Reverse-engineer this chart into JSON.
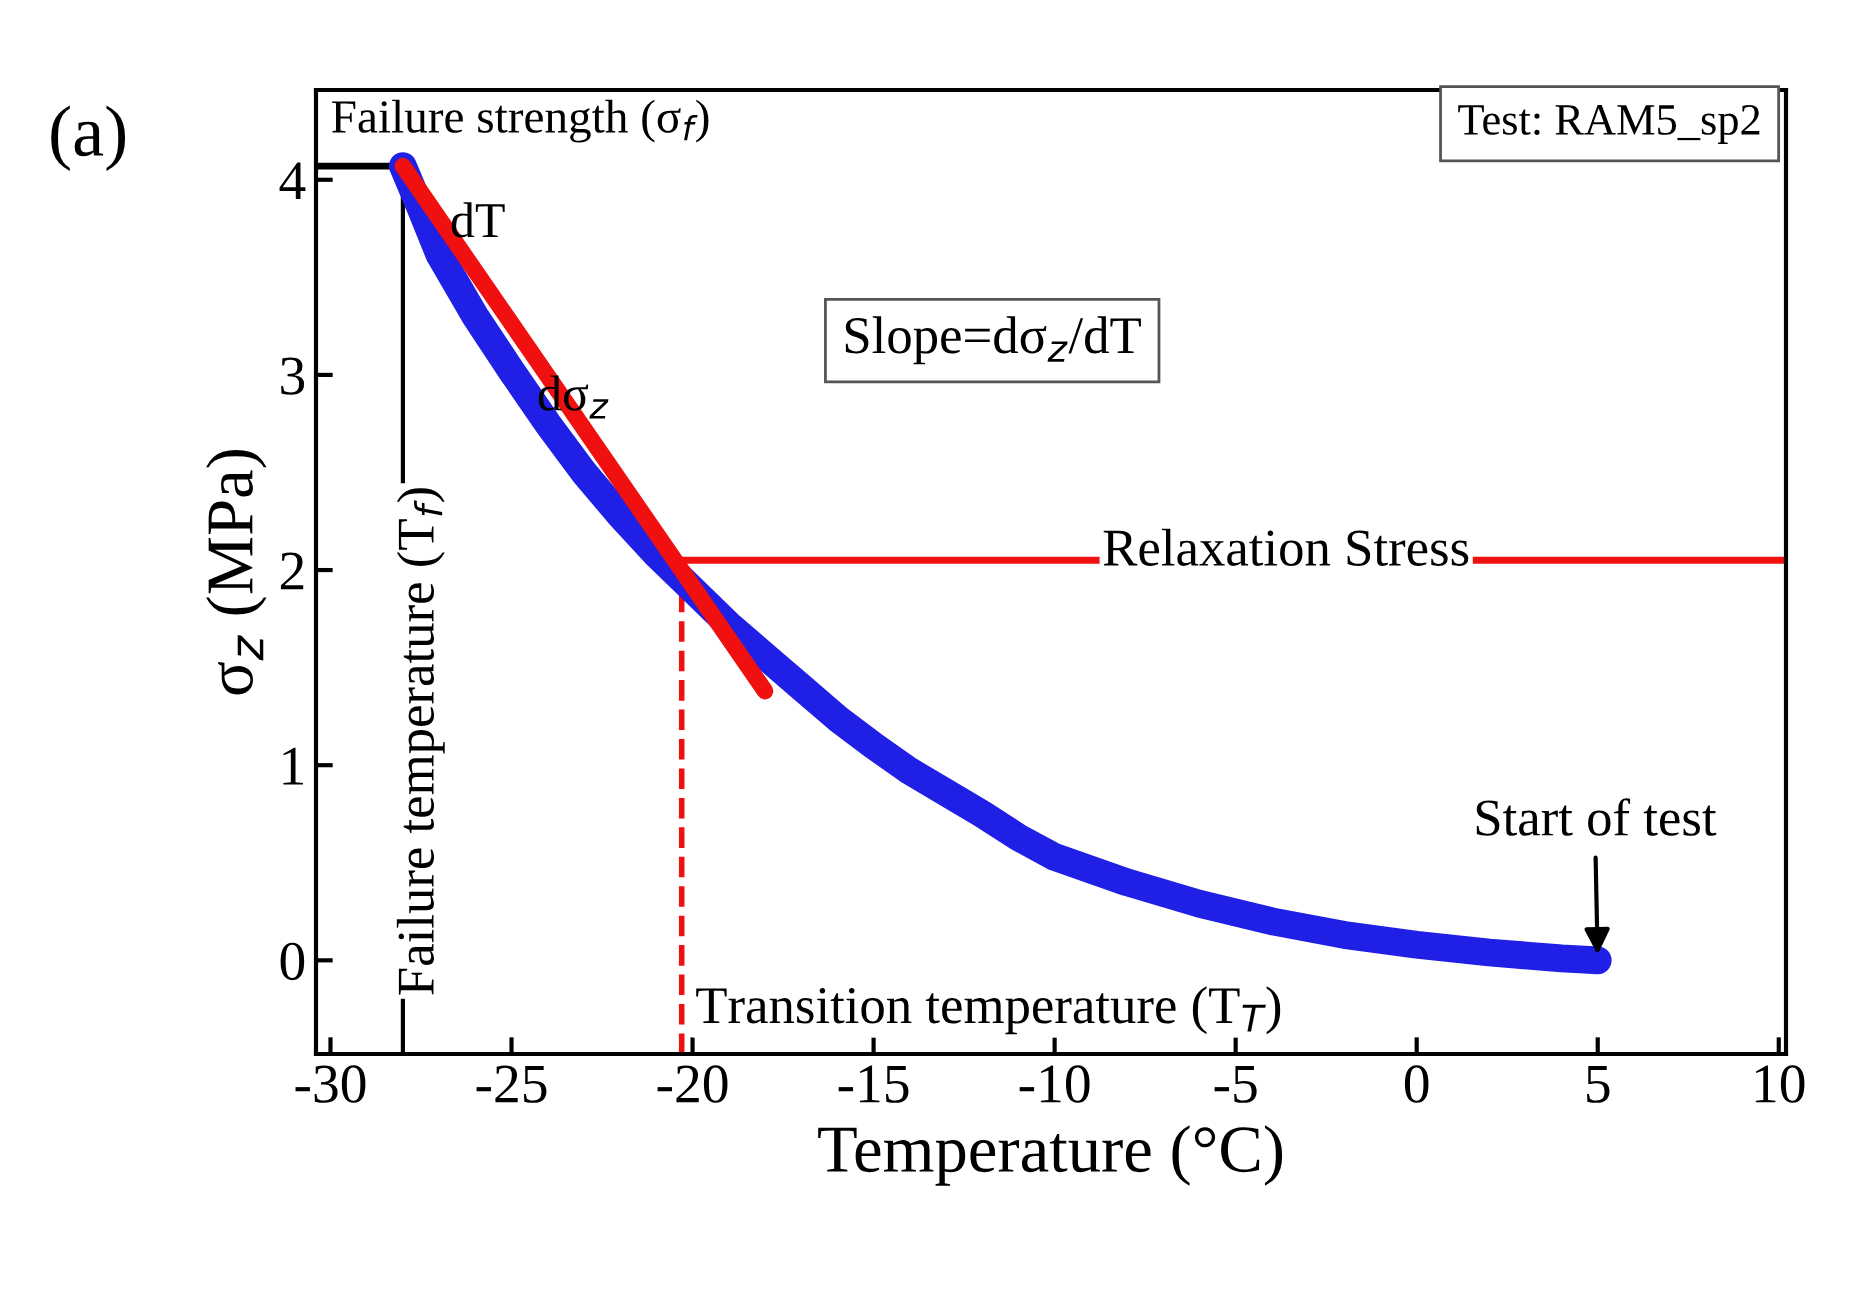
{
  "chart_data": {
    "type": "line",
    "xlabel": "Temperature (°C)",
    "ylabel": "σ$_{z}$ (MPa)",
    "xlim": [
      -30.4,
      10.2
    ],
    "ylim": [
      -0.48,
      4.46
    ],
    "xticks": [
      -30,
      -25,
      -20,
      -15,
      -10,
      -5,
      0,
      5,
      10
    ],
    "yticks": [
      0,
      1,
      2,
      3,
      4
    ],
    "grid": false,
    "legend": false,
    "series": [
      {
        "color": "#1f1fe6",
        "x": [
          -28,
          -27.5,
          -27,
          -26,
          -25,
          -24,
          -23,
          -22,
          -21,
          -20,
          -19,
          -18,
          -17,
          -16,
          -15,
          -14,
          -13,
          -12,
          -11,
          -10,
          -8,
          -6,
          -4,
          -2,
          0,
          2,
          4,
          5
        ],
        "values": [
          4.07,
          3.85,
          3.62,
          3.3,
          3.02,
          2.75,
          2.5,
          2.28,
          2.08,
          1.9,
          1.72,
          1.56,
          1.4,
          1.24,
          1.1,
          0.97,
          0.86,
          0.75,
          0.63,
          0.53,
          0.4,
          0.29,
          0.2,
          0.13,
          0.08,
          0.04,
          0.01,
          0
        ]
      },
      {
        "color": "#f01010",
        "x": [
          -28,
          -18
        ],
        "values": [
          4.07,
          1.38
        ]
      }
    ],
    "ref_lines": [
      {
        "axis": "y",
        "value": 4.07,
        "label": "Failure strength (σ$_{f}$)",
        "color": "#000000",
        "line_style": "solid"
      },
      {
        "axis": "x",
        "value": -28,
        "label": "Failure temperature (T$_{f}$)",
        "color": "#000000",
        "line_style": "solid"
      },
      {
        "axis": "y",
        "value": 2.05,
        "label": "Relaxation Stress",
        "color": "#f01010",
        "line_style": "solid"
      },
      {
        "axis": "x",
        "value": -20.3,
        "label": "Transition temperature (T$_{T}$)",
        "color": "#f01010",
        "line_style": "dashed"
      }
    ],
    "annotations": [
      "(a)",
      "Test: RAM5_sp2",
      "Slope=dσ$_{z}$/dT",
      "dT",
      "dσ$_{z}$",
      {
        "text": "Start of test",
        "x": 5,
        "y": 0
      }
    ]
  }
}
